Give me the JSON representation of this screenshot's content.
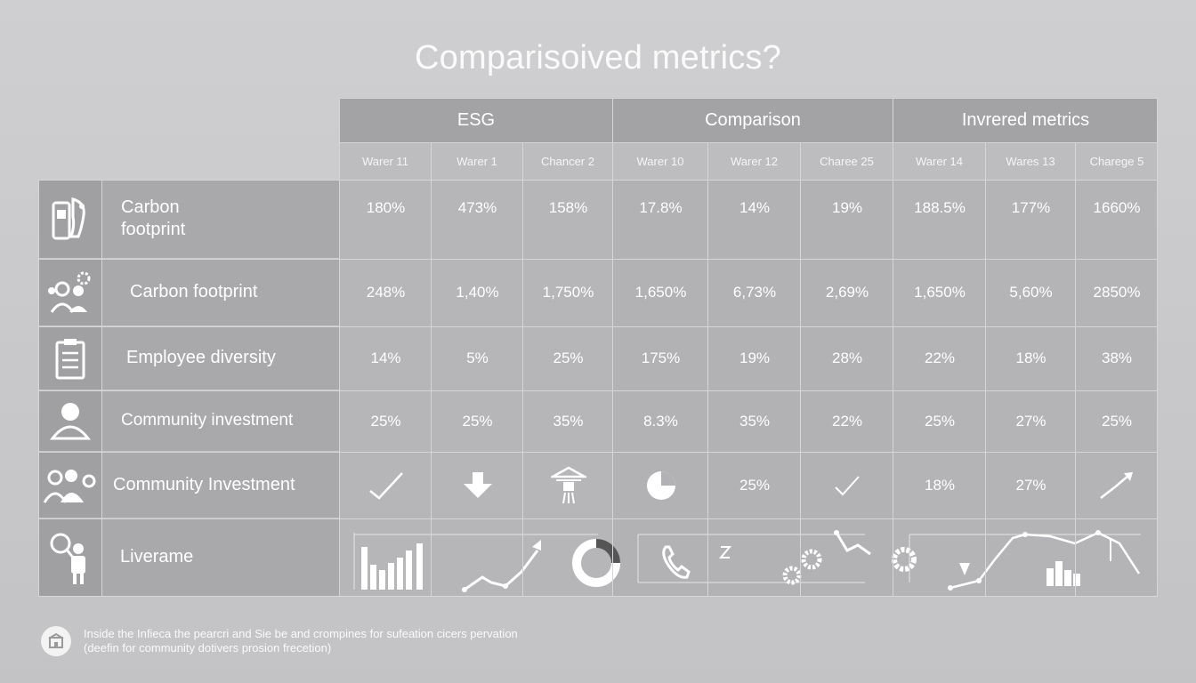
{
  "title": "Comparisoived metrics?",
  "groups": [
    {
      "label": "ESG",
      "subs": [
        "Warer 11",
        "Warer 1",
        "Chancer 2"
      ]
    },
    {
      "label": "Comparison",
      "subs": [
        "Warer 10",
        "Warer 12",
        "Charee 25"
      ]
    },
    {
      "label": "Invrered metrics",
      "subs": [
        "Warer 14",
        "Wares 13",
        "Charege 5"
      ]
    }
  ],
  "rows": [
    {
      "label_line1": "Carbon",
      "label_line2": "footprint",
      "icon": "footprint-icon",
      "cells": [
        "180%",
        "473%",
        "158%",
        "17.8%",
        "14%",
        "19%",
        "188.5%",
        "177%",
        "1660%"
      ]
    },
    {
      "label": "Carbon footprint",
      "icon": "people-gear-icon",
      "cells": [
        "248%",
        "1,40%",
        "1,750%",
        "1,650%",
        "6,73%",
        "2,69%",
        "1,650%",
        "5,60%",
        "2850%"
      ]
    },
    {
      "label": "Employee diversity",
      "icon": "clipboard-icon",
      "cells": [
        "14%",
        "5%",
        "25%",
        "175%",
        "19%",
        "28%",
        "22%",
        "18%",
        "38%"
      ]
    },
    {
      "label": "Community investment",
      "icon": "person-icon",
      "cells": [
        "25%",
        "25%",
        "35%",
        "8.3%",
        "35%",
        "22%",
        "25%",
        "27%",
        "25%"
      ]
    },
    {
      "label": "Community Investment",
      "icon": "group-icon",
      "cells": [
        "",
        "",
        "",
        "",
        "25%",
        "",
        "18%",
        "27%",
        ""
      ]
    },
    {
      "label": "Liverame",
      "icon": "magnifier-person-icon"
    }
  ],
  "footer": {
    "line1": "Inside the Infieca the pearcri and Sie be and crompines for sufeation cicers pervation",
    "line2": "(deefin for community dotivers prosion frecetion)"
  }
}
